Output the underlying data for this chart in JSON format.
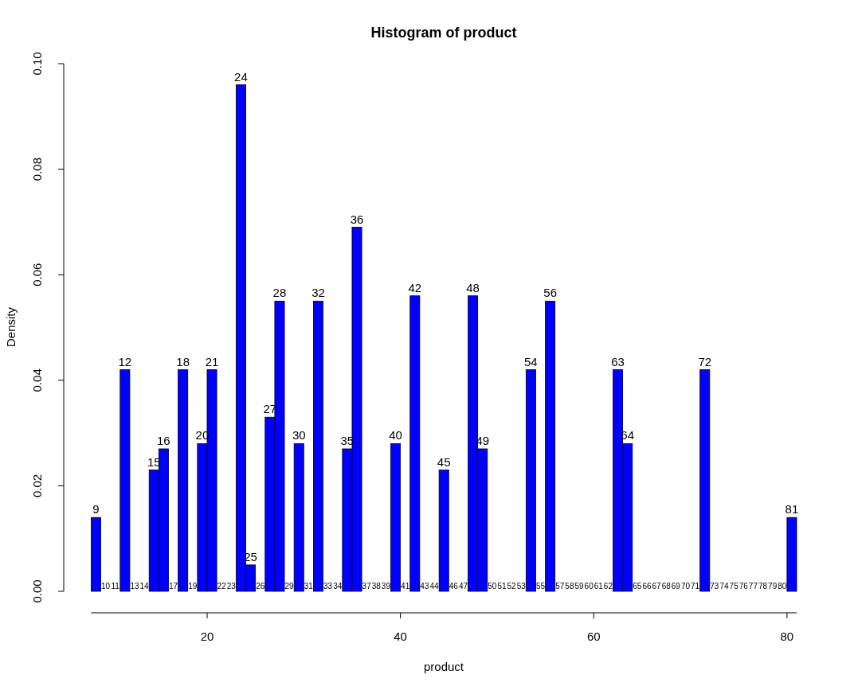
{
  "chart_data": {
    "type": "histogram",
    "title": "Histogram of product",
    "xlabel": "product",
    "ylabel": "Density",
    "bins": [
      8,
      9,
      10,
      11,
      12,
      13,
      14,
      15,
      16,
      17,
      18,
      19,
      20,
      21,
      22,
      23,
      24,
      25,
      26,
      27,
      28,
      29,
      30,
      31,
      32,
      33,
      34,
      35,
      36,
      37,
      38,
      39,
      40,
      41,
      42,
      43,
      44,
      45,
      46,
      47,
      48,
      49,
      50,
      51,
      52,
      53,
      54,
      55,
      56,
      57,
      58,
      59,
      60,
      61,
      62,
      63,
      64,
      65,
      66,
      67,
      68,
      69,
      70,
      71,
      72,
      73,
      74,
      75,
      76,
      77,
      78,
      79,
      80,
      81
    ],
    "values": [
      0.014,
      0,
      0,
      0.042,
      0,
      0,
      0.023,
      0.027,
      0,
      0.042,
      0,
      0.028,
      0.042,
      0,
      0,
      0.096,
      0.005,
      0,
      0.033,
      0.055,
      0,
      0.028,
      0,
      0.055,
      0,
      0,
      0.027,
      0.069,
      0,
      0,
      0,
      0.028,
      0,
      0.056,
      0,
      0,
      0.023,
      0,
      0,
      0.056,
      0.027,
      0,
      0,
      0,
      0,
      0.042,
      0,
      0.055,
      0,
      0,
      0,
      0,
      0,
      0,
      0.042,
      0.028,
      0,
      0,
      0,
      0,
      0,
      0,
      0,
      0.042,
      0,
      0,
      0,
      0,
      0,
      0,
      0,
      0,
      0.014
    ],
    "annotations": [
      {
        "text": "9",
        "x": 8.5,
        "y": 0.014
      },
      {
        "text": "10",
        "x": 9.5,
        "y": 0
      },
      {
        "text": "11",
        "x": 10.5,
        "y": 0
      },
      {
        "text": "12",
        "x": 11.5,
        "y": 0.042
      },
      {
        "text": "13",
        "x": 12.5,
        "y": 0
      },
      {
        "text": "14",
        "x": 13.5,
        "y": 0
      },
      {
        "text": "15",
        "x": 14.5,
        "y": 0.023
      },
      {
        "text": "16",
        "x": 15.5,
        "y": 0.027
      },
      {
        "text": "17",
        "x": 16.5,
        "y": 0
      },
      {
        "text": "18",
        "x": 17.5,
        "y": 0.042
      },
      {
        "text": "19",
        "x": 18.5,
        "y": 0
      },
      {
        "text": "20",
        "x": 19.5,
        "y": 0.028
      },
      {
        "text": "21",
        "x": 20.5,
        "y": 0.042
      },
      {
        "text": "22",
        "x": 21.5,
        "y": 0
      },
      {
        "text": "23",
        "x": 22.5,
        "y": 0
      },
      {
        "text": "24",
        "x": 23.5,
        "y": 0.096
      },
      {
        "text": "25",
        "x": 24.5,
        "y": 0.005
      },
      {
        "text": "26",
        "x": 25.5,
        "y": 0
      },
      {
        "text": "27",
        "x": 26.5,
        "y": 0.033
      },
      {
        "text": "28",
        "x": 27.5,
        "y": 0.055
      },
      {
        "text": "29",
        "x": 28.5,
        "y": 0
      },
      {
        "text": "30",
        "x": 29.5,
        "y": 0.028
      },
      {
        "text": "31",
        "x": 30.5,
        "y": 0
      },
      {
        "text": "32",
        "x": 31.5,
        "y": 0.055
      },
      {
        "text": "33",
        "x": 32.5,
        "y": 0
      },
      {
        "text": "34",
        "x": 33.5,
        "y": 0
      },
      {
        "text": "35",
        "x": 34.5,
        "y": 0.027
      },
      {
        "text": "36",
        "x": 35.5,
        "y": 0.069
      },
      {
        "text": "37",
        "x": 36.5,
        "y": 0
      },
      {
        "text": "38",
        "x": 37.5,
        "y": 0
      },
      {
        "text": "39",
        "x": 38.5,
        "y": 0
      },
      {
        "text": "40",
        "x": 39.5,
        "y": 0.028
      },
      {
        "text": "41",
        "x": 40.5,
        "y": 0
      },
      {
        "text": "42",
        "x": 41.5,
        "y": 0.056
      },
      {
        "text": "43",
        "x": 42.5,
        "y": 0
      },
      {
        "text": "44",
        "x": 43.5,
        "y": 0
      },
      {
        "text": "45",
        "x": 44.5,
        "y": 0.023
      },
      {
        "text": "46",
        "x": 45.5,
        "y": 0
      },
      {
        "text": "47",
        "x": 46.5,
        "y": 0
      },
      {
        "text": "48",
        "x": 47.5,
        "y": 0.056
      },
      {
        "text": "49",
        "x": 48.5,
        "y": 0.027
      },
      {
        "text": "50",
        "x": 49.5,
        "y": 0
      },
      {
        "text": "51",
        "x": 50.5,
        "y": 0
      },
      {
        "text": "52",
        "x": 51.5,
        "y": 0
      },
      {
        "text": "53",
        "x": 52.5,
        "y": 0
      },
      {
        "text": "54",
        "x": 53.5,
        "y": 0.042
      },
      {
        "text": "55",
        "x": 54.5,
        "y": 0
      },
      {
        "text": "56",
        "x": 55.5,
        "y": 0.055
      },
      {
        "text": "57",
        "x": 56.5,
        "y": 0
      },
      {
        "text": "58",
        "x": 57.5,
        "y": 0
      },
      {
        "text": "59",
        "x": 58.5,
        "y": 0
      },
      {
        "text": "60",
        "x": 59.5,
        "y": 0
      },
      {
        "text": "61",
        "x": 60.5,
        "y": 0
      },
      {
        "text": "62",
        "x": 61.5,
        "y": 0
      },
      {
        "text": "63",
        "x": 62.5,
        "y": 0.042
      },
      {
        "text": "64",
        "x": 63.5,
        "y": 0.028
      },
      {
        "text": "65",
        "x": 64.5,
        "y": 0
      },
      {
        "text": "66",
        "x": 65.5,
        "y": 0
      },
      {
        "text": "67",
        "x": 66.5,
        "y": 0
      },
      {
        "text": "68",
        "x": 67.5,
        "y": 0
      },
      {
        "text": "69",
        "x": 68.5,
        "y": 0
      },
      {
        "text": "70",
        "x": 69.5,
        "y": 0
      },
      {
        "text": "71",
        "x": 70.5,
        "y": 0
      },
      {
        "text": "72",
        "x": 71.5,
        "y": 0.042
      },
      {
        "text": "73",
        "x": 72.5,
        "y": 0
      },
      {
        "text": "74",
        "x": 73.5,
        "y": 0
      },
      {
        "text": "75",
        "x": 74.5,
        "y": 0
      },
      {
        "text": "76",
        "x": 75.5,
        "y": 0
      },
      {
        "text": "77",
        "x": 76.5,
        "y": 0
      },
      {
        "text": "78",
        "x": 77.5,
        "y": 0
      },
      {
        "text": "79",
        "x": 78.5,
        "y": 0
      },
      {
        "text": "80",
        "x": 79.5,
        "y": 0
      },
      {
        "text": "81",
        "x": 80.5,
        "y": 0.014
      }
    ],
    "color": "#0000ff",
    "xlim": [
      8,
      81
    ],
    "xticks": [
      20,
      40,
      60,
      80
    ],
    "ylim": [
      0,
      0.1
    ],
    "yticks": [
      {
        "value": 0,
        "label": "0.00"
      },
      {
        "value": 0.02,
        "label": "0.02"
      },
      {
        "value": 0.04,
        "label": "0.04"
      },
      {
        "value": 0.06,
        "label": "0.06"
      },
      {
        "value": 0.08,
        "label": "0.08"
      },
      {
        "value": 0.1,
        "label": "0.10"
      }
    ],
    "grid": false
  }
}
